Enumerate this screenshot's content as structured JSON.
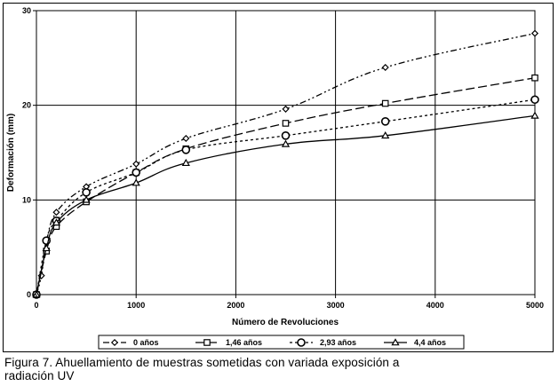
{
  "chart_data": {
    "type": "line",
    "title": "",
    "xlabel": "Número de Revoluciones",
    "ylabel": "Deformación (mm)",
    "xlim": [
      0,
      5000
    ],
    "ylim": [
      0,
      30
    ],
    "xticks": [
      0,
      1000,
      2000,
      3000,
      4000,
      5000
    ],
    "yticks": [
      0,
      10,
      20,
      30
    ],
    "grid": true,
    "legend_position": "bottom",
    "series": [
      {
        "name": "0 años",
        "marker": "diamond",
        "dash": "dash-dot-dot",
        "x": [
          0,
          50,
          100,
          200,
          500,
          1000,
          1500,
          2500,
          3500,
          5000
        ],
        "y": [
          0,
          2,
          5.5,
          8.7,
          11.4,
          13.8,
          16.5,
          19.6,
          24.0,
          27.6
        ]
      },
      {
        "name": "1,46 años",
        "marker": "square",
        "dash": "long-dash",
        "x": [
          0,
          100,
          200,
          500,
          1000,
          1500,
          2500,
          3500,
          5000
        ],
        "y": [
          0,
          4.6,
          7.2,
          9.8,
          12.9,
          15.4,
          18.1,
          20.2,
          22.9
        ]
      },
      {
        "name": "2,93 años",
        "marker": "circle",
        "dash": "short-dash",
        "x": [
          0,
          100,
          200,
          500,
          1000,
          1500,
          2500,
          3500,
          5000
        ],
        "y": [
          0,
          5.7,
          7.8,
          10.8,
          12.9,
          15.3,
          16.8,
          18.3,
          20.6
        ]
      },
      {
        "name": "4,4 años",
        "marker": "triangle",
        "dash": "solid",
        "x": [
          0,
          100,
          200,
          500,
          1000,
          1500,
          2500,
          3500,
          5000
        ],
        "y": [
          0,
          4.9,
          7.6,
          10.0,
          11.8,
          13.9,
          15.9,
          16.8,
          18.9
        ]
      }
    ]
  },
  "caption": {
    "line1": "Figura 7. Ahuellamiento de muestras sometidas con variada exposición a",
    "line2": "radiación UV"
  }
}
